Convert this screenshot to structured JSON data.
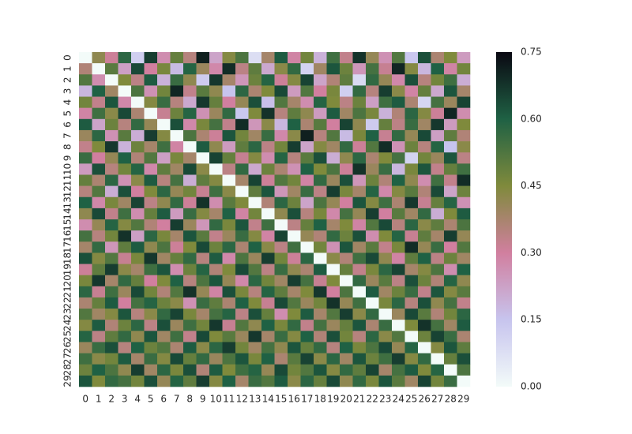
{
  "chart_data": {
    "type": "heatmap",
    "x_labels": [
      "0",
      "1",
      "2",
      "3",
      "4",
      "5",
      "6",
      "7",
      "8",
      "9",
      "10",
      "11",
      "12",
      "13",
      "14",
      "15",
      "16",
      "17",
      "18",
      "19",
      "20",
      "21",
      "22",
      "23",
      "24",
      "25",
      "26",
      "27",
      "28",
      "29"
    ],
    "y_labels": [
      "0",
      "1",
      "2",
      "3",
      "4",
      "5",
      "6",
      "7",
      "8",
      "9",
      "10",
      "11",
      "12",
      "13",
      "14",
      "15",
      "16",
      "17",
      "18",
      "19",
      "20",
      "21",
      "22",
      "23",
      "24",
      "25",
      "26",
      "27",
      "28",
      "29"
    ],
    "z": [
      [
        0,
        0.42,
        0.31,
        0.58,
        0.12,
        0.66,
        0.27,
        0.49,
        0.35,
        0.71,
        0.22,
        0.44,
        0.53,
        0.08,
        0.38,
        0.61,
        0.29,
        0.47,
        0.19,
        0.55,
        0.33,
        0.68,
        0.41,
        0.26,
        0.52,
        0.14,
        0.63,
        0.37,
        0.45,
        0.24
      ],
      [
        0.36,
        0,
        0.51,
        0.23,
        0.64,
        0.3,
        0.46,
        0.17,
        0.59,
        0.4,
        0.28,
        0.69,
        0.34,
        0.5,
        0.21,
        0.43,
        0.57,
        0.11,
        0.39,
        0.62,
        0.48,
        0.25,
        0.54,
        0.32,
        0.7,
        0.44,
        0.18,
        0.6,
        0.29,
        0.47
      ],
      [
        0.52,
        0.27,
        0,
        0.45,
        0.34,
        0.61,
        0.19,
        0.56,
        0.42,
        0.13,
        0.67,
        0.38,
        0.25,
        0.48,
        0.59,
        0.31,
        0.44,
        0.65,
        0.22,
        0.36,
        0.5,
        0.09,
        0.57,
        0.41,
        0.28,
        0.63,
        0.35,
        0.47,
        0.55,
        0.2
      ],
      [
        0.18,
        0.6,
        0.39,
        0,
        0.53,
        0.26,
        0.47,
        0.7,
        0.33,
        0.51,
        0.42,
        0.15,
        0.58,
        0.37,
        0.45,
        0.64,
        0.24,
        0.52,
        0.3,
        0.46,
        0.12,
        0.57,
        0.35,
        0.66,
        0.43,
        0.29,
        0.49,
        0.21,
        0.62,
        0.38
      ],
      [
        0.47,
        0.33,
        0.62,
        0.28,
        0,
        0.44,
        0.56,
        0.35,
        0.21,
        0.67,
        0.49,
        0.3,
        0.41,
        0.63,
        0.16,
        0.52,
        0.38,
        0.27,
        0.59,
        0.45,
        0.34,
        0.48,
        0.23,
        0.55,
        0.61,
        0.37,
        0.1,
        0.54,
        0.4,
        0.65
      ],
      [
        0.29,
        0.55,
        0.43,
        0.64,
        0.37,
        0,
        0.32,
        0.48,
        0.59,
        0.26,
        0.4,
        0.57,
        0.14,
        0.45,
        0.68,
        0.35,
        0.5,
        0.42,
        0.24,
        0.61,
        0.39,
        0.53,
        0.46,
        0.19,
        0.36,
        0.58,
        0.44,
        0.31,
        0.7,
        0.27
      ],
      [
        0.61,
        0.22,
        0.48,
        0.35,
        0.57,
        0.41,
        0,
        0.63,
        0.28,
        0.46,
        0.54,
        0.33,
        0.69,
        0.25,
        0.43,
        0.18,
        0.6,
        0.37,
        0.51,
        0.3,
        0.65,
        0.42,
        0.13,
        0.49,
        0.34,
        0.56,
        0.39,
        0.67,
        0.24,
        0.45
      ],
      [
        0.4,
        0.58,
        0.26,
        0.51,
        0.2,
        0.66,
        0.44,
        0,
        0.53,
        0.37,
        0.31,
        0.62,
        0.47,
        0.39,
        0.56,
        0.28,
        0.43,
        0.71,
        0.35,
        0.52,
        0.17,
        0.46,
        0.6,
        0.32,
        0.57,
        0.41,
        0.64,
        0.23,
        0.5,
        0.36
      ],
      [
        0.33,
        0.45,
        0.67,
        0.19,
        0.48,
        0.38,
        0.55,
        0.29,
        0,
        0.61,
        0.42,
        0.24,
        0.5,
        0.58,
        0.34,
        0.47,
        0.66,
        0.22,
        0.44,
        0.39,
        0.57,
        0.31,
        0.52,
        0.69,
        0.26,
        0.48,
        0.35,
        0.59,
        0.15,
        0.43
      ],
      [
        0.56,
        0.3,
        0.41,
        0.6,
        0.36,
        0.52,
        0.23,
        0.46,
        0.38,
        0,
        0.65,
        0.49,
        0.32,
        0.44,
        0.27,
        0.59,
        0.35,
        0.51,
        0.63,
        0.2,
        0.42,
        0.58,
        0.37,
        0.45,
        0.54,
        0.11,
        0.47,
        0.4,
        0.62,
        0.34
      ],
      [
        0.24,
        0.63,
        0.35,
        0.47,
        0.59,
        0.28,
        0.5,
        0.39,
        0.64,
        0.43,
        0,
        0.34,
        0.57,
        0.21,
        0.48,
        0.37,
        0.26,
        0.6,
        0.45,
        0.53,
        0.31,
        0.68,
        0.4,
        0.56,
        0.18,
        0.46,
        0.62,
        0.33,
        0.49,
        0.55
      ],
      [
        0.49,
        0.37,
        0.58,
        0.26,
        0.43,
        0.61,
        0.35,
        0.54,
        0.2,
        0.5,
        0.44,
        0,
        0.38,
        0.65,
        0.31,
        0.52,
        0.47,
        0.29,
        0.57,
        0.4,
        0.63,
        0.25,
        0.48,
        0.36,
        0.6,
        0.42,
        0.27,
        0.55,
        0.33,
        0.69
      ],
      [
        0.35,
        0.52,
        0.2,
        0.63,
        0.3,
        0.45,
        0.58,
        0.41,
        0.47,
        0.32,
        0.55,
        0.43,
        0,
        0.5,
        0.62,
        0.25,
        0.39,
        0.56,
        0.34,
        0.66,
        0.46,
        0.38,
        0.59,
        0.28,
        0.44,
        0.51,
        0.36,
        0.64,
        0.22,
        0.48
      ],
      [
        0.6,
        0.28,
        0.46,
        0.39,
        0.65,
        0.34,
        0.42,
        0.57,
        0.31,
        0.68,
        0.27,
        0.51,
        0.45,
        0,
        0.36,
        0.58,
        0.48,
        0.22,
        0.53,
        0.41,
        0.3,
        0.62,
        0.44,
        0.55,
        0.37,
        0.67,
        0.32,
        0.49,
        0.59,
        0.26
      ],
      [
        0.42,
        0.64,
        0.33,
        0.55,
        0.27,
        0.49,
        0.61,
        0.24,
        0.56,
        0.44,
        0.38,
        0.6,
        0.29,
        0.47,
        0,
        0.42,
        0.63,
        0.35,
        0.46,
        0.28,
        0.54,
        0.41,
        0.66,
        0.3,
        0.51,
        0.39,
        0.57,
        0.2,
        0.45,
        0.61
      ],
      [
        0.27,
        0.41,
        0.59,
        0.44,
        0.52,
        0.36,
        0.3,
        0.66,
        0.4,
        0.25,
        0.57,
        0.46,
        0.62,
        0.33,
        0.55,
        0,
        0.34,
        0.49,
        0.6,
        0.38,
        0.45,
        0.29,
        0.52,
        0.64,
        0.35,
        0.58,
        0.43,
        0.5,
        0.37,
        0.53
      ],
      [
        0.54,
        0.35,
        0.47,
        0.68,
        0.23,
        0.58,
        0.46,
        0.38,
        0.62,
        0.51,
        0.33,
        0.4,
        0.56,
        0.44,
        0.29,
        0.65,
        0,
        0.41,
        0.36,
        0.57,
        0.48,
        0.63,
        0.27,
        0.45,
        0.59,
        0.32,
        0.5,
        0.38,
        0.66,
        0.41
      ],
      [
        0.38,
        0.57,
        0.25,
        0.5,
        0.61,
        0.42,
        0.53,
        0.31,
        0.45,
        0.64,
        0.48,
        0.58,
        0.37,
        0.6,
        0.43,
        0.34,
        0.55,
        0,
        0.47,
        0.26,
        0.62,
        0.39,
        0.51,
        0.33,
        0.46,
        0.69,
        0.41,
        0.56,
        0.3,
        0.52
      ],
      [
        0.63,
        0.44,
        0.52,
        0.32,
        0.46,
        0.67,
        0.39,
        0.49,
        0.57,
        0.35,
        0.61,
        0.28,
        0.53,
        0.4,
        0.66,
        0.47,
        0.31,
        0.58,
        0,
        0.43,
        0.36,
        0.55,
        0.64,
        0.42,
        0.29,
        0.5,
        0.6,
        0.34,
        0.48,
        0.39
      ],
      [
        0.31,
        0.5,
        0.66,
        0.43,
        0.38,
        0.55,
        0.62,
        0.27,
        0.48,
        0.59,
        0.36,
        0.45,
        0.64,
        0.52,
        0.34,
        0.56,
        0.42,
        0.37,
        0.61,
        0,
        0.49,
        0.33,
        0.46,
        0.58,
        0.65,
        0.38,
        0.44,
        0.53,
        0.27,
        0.6
      ],
      [
        0.46,
        0.67,
        0.38,
        0.57,
        0.49,
        0.3,
        0.45,
        0.6,
        0.35,
        0.53,
        0.62,
        0.41,
        0.28,
        0.58,
        0.47,
        0.39,
        0.66,
        0.54,
        0.32,
        0.45,
        0,
        0.57,
        0.4,
        0.51,
        0.34,
        0.63,
        0.48,
        0.36,
        0.59,
        0.42
      ],
      [
        0.58,
        0.32,
        0.55,
        0.4,
        0.64,
        0.47,
        0.36,
        0.52,
        0.68,
        0.41,
        0.29,
        0.63,
        0.46,
        0.35,
        0.59,
        0.5,
        0.38,
        0.45,
        0.67,
        0.3,
        0.53,
        0,
        0.61,
        0.39,
        0.48,
        0.56,
        0.33,
        0.62,
        0.44,
        0.51
      ],
      [
        0.37,
        0.49,
        0.61,
        0.3,
        0.54,
        0.59,
        0.48,
        0.43,
        0.26,
        0.56,
        0.5,
        0.37,
        0.6,
        0.45,
        0.32,
        0.64,
        0.52,
        0.4,
        0.47,
        0.68,
        0.41,
        0.55,
        0,
        0.46,
        0.58,
        0.35,
        0.63,
        0.42,
        0.54,
        0.33
      ],
      [
        0.52,
        0.39,
        0.44,
        0.62,
        0.35,
        0.43,
        0.57,
        0.65,
        0.46,
        0.38,
        0.54,
        0.59,
        0.34,
        0.63,
        0.49,
        0.27,
        0.45,
        0.61,
        0.38,
        0.52,
        0.66,
        0.43,
        0.57,
        0,
        0.4,
        0.64,
        0.51,
        0.36,
        0.47,
        0.58
      ],
      [
        0.44,
        0.61,
        0.36,
        0.48,
        0.58,
        0.34,
        0.63,
        0.4,
        0.55,
        0.47,
        0.67,
        0.32,
        0.52,
        0.42,
        0.6,
        0.46,
        0.57,
        0.33,
        0.54,
        0.4,
        0.49,
        0.62,
        0.37,
        0.56,
        0,
        0.45,
        0.68,
        0.54,
        0.39,
        0.61
      ],
      [
        0.59,
        0.34,
        0.5,
        0.57,
        0.42,
        0.62,
        0.39,
        0.55,
        0.33,
        0.64,
        0.45,
        0.51,
        0.4,
        0.67,
        0.38,
        0.56,
        0.44,
        0.6,
        0.36,
        0.63,
        0.47,
        0.35,
        0.58,
        0.43,
        0.52,
        0,
        0.48,
        0.65,
        0.56,
        0.37
      ],
      [
        0.4,
        0.56,
        0.63,
        0.35,
        0.6,
        0.48,
        0.52,
        0.37,
        0.61,
        0.43,
        0.58,
        0.66,
        0.47,
        0.39,
        0.54,
        0.42,
        0.62,
        0.49,
        0.57,
        0.35,
        0.6,
        0.46,
        0.53,
        0.64,
        0.41,
        0.59,
        0,
        0.44,
        0.62,
        0.5
      ],
      [
        0.55,
        0.43,
        0.47,
        0.61,
        0.38,
        0.56,
        0.44,
        0.64,
        0.49,
        0.57,
        0.4,
        0.53,
        0.62,
        0.46,
        0.6,
        0.37,
        0.51,
        0.65,
        0.43,
        0.58,
        0.39,
        0.62,
        0.48,
        0.55,
        0.66,
        0.44,
        0.57,
        0,
        0.49,
        0.63
      ],
      [
        0.48,
        0.6,
        0.53,
        0.42,
        0.66,
        0.39,
        0.58,
        0.46,
        0.63,
        0.36,
        0.61,
        0.45,
        0.55,
        0.59,
        0.41,
        0.64,
        0.47,
        0.52,
        0.62,
        0.44,
        0.57,
        0.5,
        0.65,
        0.38,
        0.54,
        0.61,
        0.45,
        0.59,
        0,
        0.53
      ],
      [
        0.62,
        0.45,
        0.57,
        0.54,
        0.47,
        0.63,
        0.41,
        0.59,
        0.5,
        0.66,
        0.44,
        0.6,
        0.38,
        0.56,
        0.52,
        0.61,
        0.43,
        0.58,
        0.49,
        0.64,
        0.42,
        0.57,
        0.46,
        0.62,
        0.51,
        0.39,
        0.65,
        0.47,
        0.56,
        0
      ]
    ],
    "vlim": [
      0,
      0.75
    ],
    "colorbar_ticks": [
      {
        "value": 0,
        "label": "0.00"
      },
      {
        "value": 0.15,
        "label": "0.15"
      },
      {
        "value": 0.3,
        "label": "0.30"
      },
      {
        "value": 0.45,
        "label": "0.45"
      },
      {
        "value": 0.6,
        "label": "0.60"
      },
      {
        "value": 0.75,
        "label": "0.75"
      }
    ],
    "colormap": [
      "#f3fbf9",
      "#c7c4ee",
      "#d17f9f",
      "#7f8a3c",
      "#1f6144",
      "#0a0812"
    ]
  }
}
